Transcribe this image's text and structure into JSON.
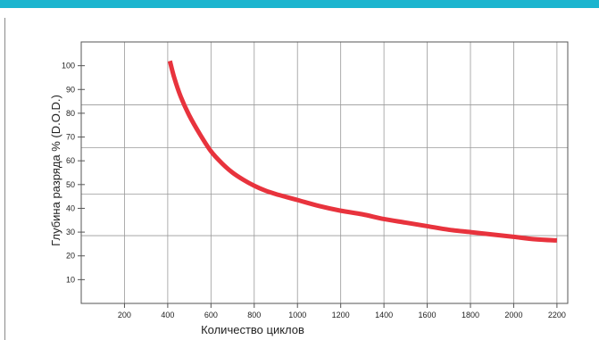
{
  "chart_data": {
    "type": "line",
    "title": "",
    "xlabel": "Количество циклов",
    "ylabel": "Глубина разряда % (D.O.D.)",
    "xlim": [
      0,
      2250
    ],
    "ylim": [
      0,
      110
    ],
    "x_ticks": [
      200,
      400,
      600,
      800,
      1000,
      1200,
      1400,
      1600,
      1800,
      2000,
      2200
    ],
    "y_ticks": [
      10,
      20,
      30,
      40,
      50,
      60,
      70,
      80,
      90,
      100
    ],
    "x_gridlines": [
      0,
      200,
      400,
      600,
      800,
      1000,
      1200,
      1400,
      1600,
      1800,
      2000,
      2200
    ],
    "y_gridlines": [
      28.5,
      46,
      65.5,
      83.5
    ],
    "grid": true,
    "legend": "none",
    "series": [
      {
        "color": "#e8333d",
        "x": [
          410,
          430,
          460,
          500,
          550,
          600,
          650,
          700,
          750,
          800,
          850,
          900,
          1000,
          1100,
          1200,
          1300,
          1400,
          1500,
          1600,
          1700,
          1800,
          1900,
          2000,
          2100,
          2200
        ],
        "y": [
          102,
          95,
          87,
          79,
          71,
          64,
          59,
          55,
          52,
          49.5,
          47.5,
          46,
          43.5,
          41,
          39,
          37.5,
          35.5,
          34,
          32.5,
          31,
          30,
          29,
          28,
          27,
          26.5
        ]
      }
    ]
  },
  "colors": {
    "accent_bar": "#1cb5cf",
    "curve": "#e8333d",
    "grid": "#9a9a9a",
    "frame": "#555555"
  }
}
